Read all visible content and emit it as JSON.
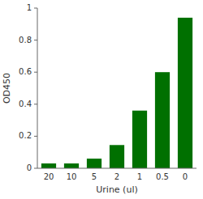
{
  "chart_data": {
    "type": "bar",
    "categories": [
      "20",
      "10",
      "5",
      "2",
      "1",
      "0.5",
      "0"
    ],
    "values": [
      0.03,
      0.03,
      0.06,
      0.145,
      0.36,
      0.6,
      0.94
    ],
    "color": "#007000",
    "xlabel": "Urine (ul)",
    "ylabel": "OD450",
    "ylim": [
      0,
      1.0
    ],
    "yticks": [
      0,
      0.2,
      0.4,
      0.6,
      0.8,
      1
    ],
    "grid": false
  }
}
